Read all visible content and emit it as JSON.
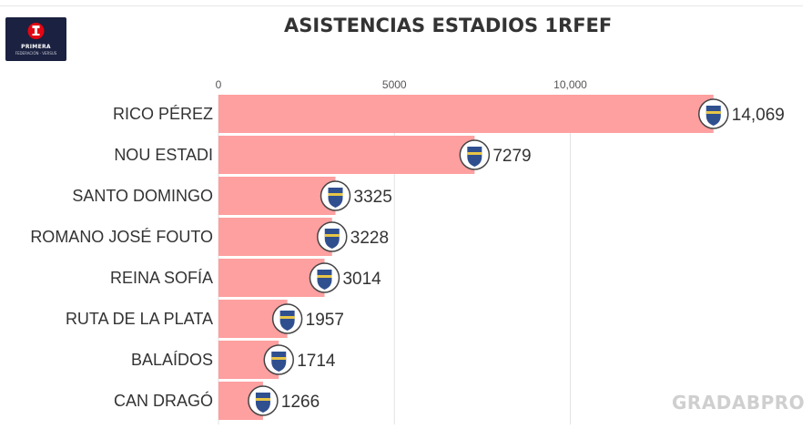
{
  "header": {
    "logo_text": "PRIMERA",
    "logo_sub": "FEDERACIÓN · VERSUS",
    "title": "ASISTENCIAS ESTADIOS 1RFEF"
  },
  "watermark": "GRADABPRO",
  "colors": {
    "bar": "#fe9fa0",
    "grid": "#e2e2e2",
    "text": "#333333",
    "logo_bg": "#1b2140",
    "logo_accent": "#e30613",
    "watermark": "#cfcfcf"
  },
  "chart_data": {
    "type": "bar",
    "orientation": "horizontal",
    "title": "ASISTENCIAS ESTADIOS 1RFEF",
    "categories": [
      "RICO PÉREZ",
      "NOU ESTADI",
      "SANTO DOMINGO",
      "ROMANO JOSÉ FOUTO",
      "REINA SOFÍA",
      "RUTA DE LA PLATA",
      "BALAÍDOS",
      "CAN DRAGÓ"
    ],
    "values": [
      14069,
      7279,
      3325,
      3228,
      3014,
      1957,
      1714,
      1266
    ],
    "value_labels": [
      "14,069",
      "7279",
      "3325",
      "3228",
      "3014",
      "1957",
      "1714",
      "1266"
    ],
    "crest_icons": [
      "hercules-crest-icon",
      "nastic-crest-icon",
      "alcorcon-crest-icon",
      "merida-crest-icon",
      "intercity-crest-icon",
      "zamora-crest-icon",
      "celta-b-crest-icon",
      "sabadell-crest-icon"
    ],
    "xticks": [
      0,
      5000,
      10000
    ],
    "xtick_labels": [
      "0",
      "5000",
      "10,000"
    ],
    "xlim": [
      0,
      16300
    ],
    "xlabel": "",
    "ylabel": "",
    "grid": true,
    "legend": "none"
  }
}
